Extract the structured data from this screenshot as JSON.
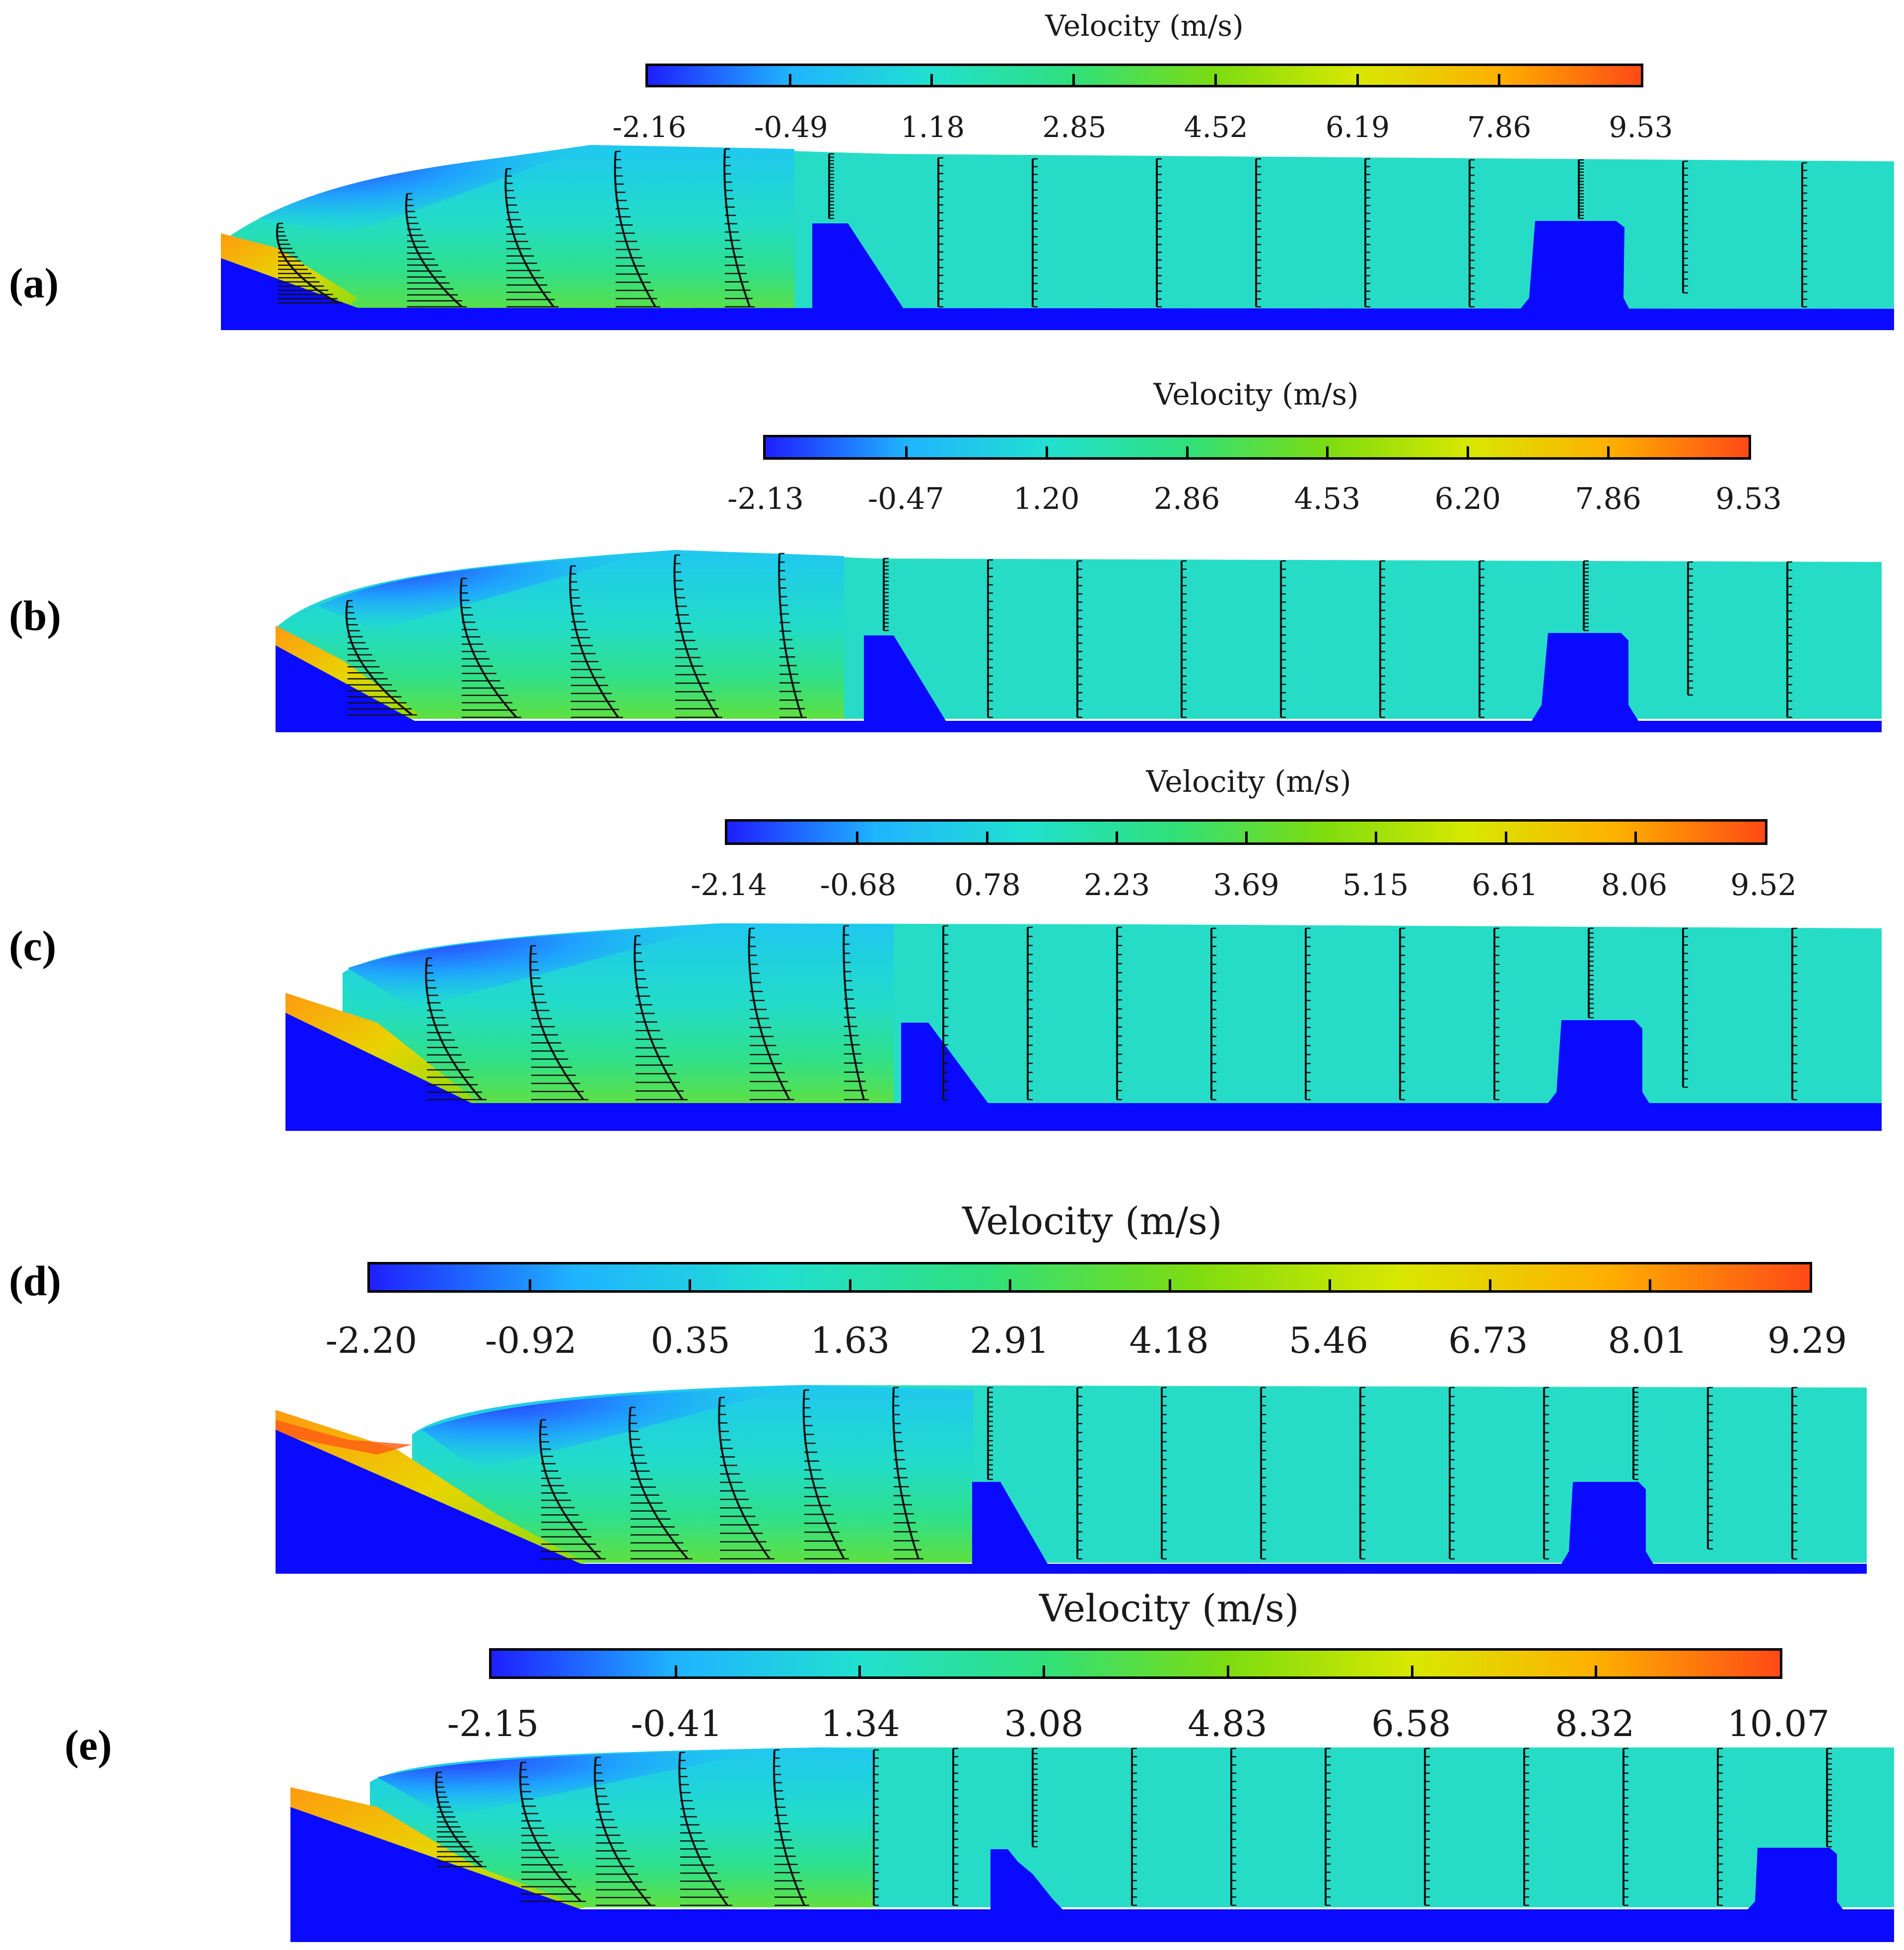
{
  "colormap": {
    "stops": [
      "#1f1fff",
      "#1fb4ff",
      "#21e0d0",
      "#2fe07a",
      "#7ddc10",
      "#d8e800",
      "#ffb000",
      "#ff4a16"
    ]
  },
  "colors": {
    "bed": "#0a0aff",
    "arrow": "#111111"
  },
  "panels": [
    {
      "label": "(a)",
      "legend": {
        "title": "Velocity (m/s)",
        "ticks": [
          "-2.16",
          "-0.49",
          "1.18",
          "2.85",
          "4.52",
          "6.19",
          "7.86",
          "9.53"
        ]
      }
    },
    {
      "label": "(b)",
      "legend": {
        "title": "Velocity (m/s)",
        "ticks": [
          "-2.13",
          "-0.47",
          "1.20",
          "2.86",
          "4.53",
          "6.20",
          "7.86",
          "9.53"
        ]
      }
    },
    {
      "label": "(c)",
      "legend": {
        "title": "Velocity (m/s)",
        "ticks": [
          "-2.14",
          "-0.68",
          "0.78",
          "2.23",
          "3.69",
          "5.15",
          "6.61",
          "8.06",
          "9.52"
        ]
      }
    },
    {
      "label": "(d)",
      "legend": {
        "title": "Velocity (m/s)",
        "ticks": [
          "-2.20",
          "-0.92",
          "0.35",
          "1.63",
          "2.91",
          "4.18",
          "5.46",
          "6.73",
          "8.01",
          "9.29"
        ]
      }
    },
    {
      "label": "(e)",
      "legend": {
        "title": "Velocity (m/s)",
        "ticks": [
          "-2.15",
          "-0.41",
          "1.34",
          "3.08",
          "4.83",
          "6.58",
          "8.32",
          "10.07"
        ]
      }
    }
  ]
}
